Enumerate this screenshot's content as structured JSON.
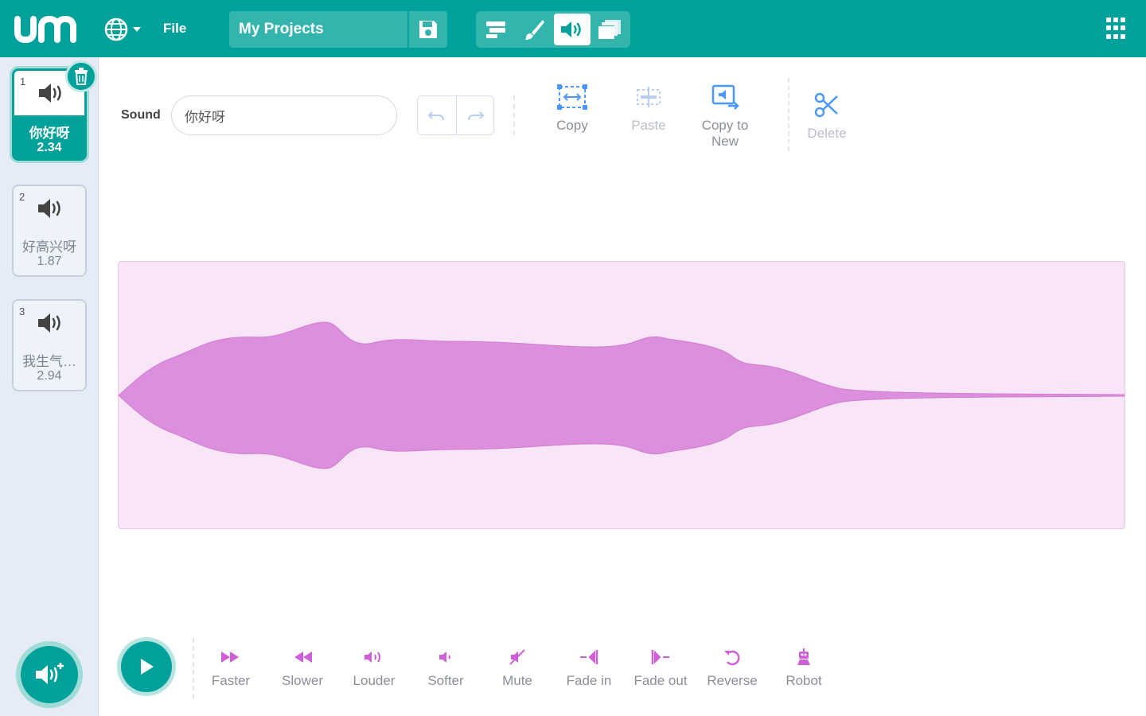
{
  "header": {
    "file_label": "File",
    "project_title": "My Projects"
  },
  "sounds": [
    {
      "number": "1",
      "name": "你好呀",
      "duration": "2.34",
      "selected": true
    },
    {
      "number": "2",
      "name": "好高兴呀",
      "duration": "1.87",
      "selected": false
    },
    {
      "number": "3",
      "name": "我生气…",
      "duration": "2.94",
      "selected": false
    }
  ],
  "editor": {
    "sound_label": "Sound",
    "sound_name_value": "你好呀",
    "tools": {
      "copy": "Copy",
      "paste": "Paste",
      "copy_to_new_line1": "Copy to",
      "copy_to_new_line2": "New",
      "delete": "Delete"
    }
  },
  "effects": {
    "faster": "Faster",
    "slower": "Slower",
    "louder": "Louder",
    "softer": "Softer",
    "mute": "Mute",
    "fade_in": "Fade in",
    "fade_out": "Fade out",
    "reverse": "Reverse",
    "robot": "Robot"
  },
  "colors": {
    "brand": "#00a19a",
    "waveform_fill": "#dc8fdd",
    "waveform_bg": "#f8e5f8",
    "effect_icon": "#cf5fd6",
    "tool_icon": "#4c97ff"
  },
  "icons": {
    "logo": "um-logo",
    "language": "globe-icon",
    "save": "save-icon",
    "modes": [
      "code-icon",
      "paint-brush-icon",
      "sound-icon",
      "stage-icon"
    ],
    "apps": "grid-icon",
    "delete_sound": "trash-icon",
    "add_sound": "add-sound-icon",
    "play": "play-icon"
  }
}
